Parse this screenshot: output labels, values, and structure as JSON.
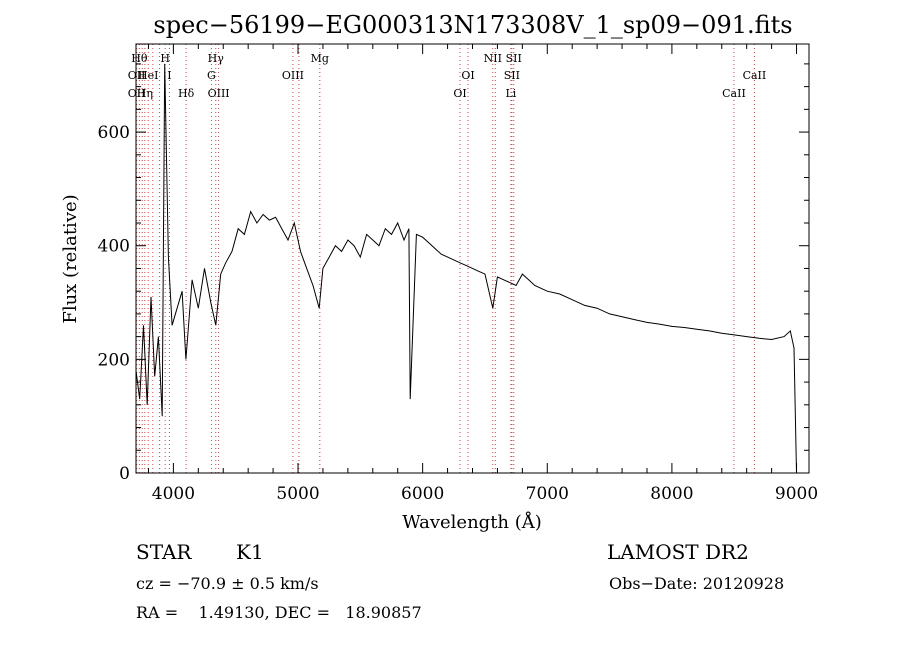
{
  "chart_data": {
    "type": "line",
    "title": "spec−56199−EG000313N173308V_1_sp09−091.fits",
    "xlabel": "Wavelength (Å)",
    "ylabel": "Flux (relative)",
    "xlim": [
      3700,
      9100
    ],
    "ylim": [
      0,
      755
    ],
    "x_ticks": [
      4000,
      5000,
      6000,
      7000,
      8000,
      9000
    ],
    "x_tick_labels": [
      "4000",
      "5000",
      "6000",
      "7000",
      "8000",
      "9000"
    ],
    "y_ticks": [
      0,
      200,
      400,
      600
    ],
    "y_tick_labels": [
      "0",
      "200",
      "400",
      "600"
    ],
    "grid": false,
    "series": [
      {
        "x": [
          3700,
          3730,
          3760,
          3790,
          3820,
          3850,
          3880,
          3910,
          3930,
          3960,
          3990,
          4030,
          4070,
          4100,
          4150,
          4200,
          4250,
          4300,
          4340,
          4380,
          4420,
          4470,
          4520,
          4570,
          4620,
          4670,
          4720,
          4770,
          4820,
          4870,
          4920,
          4970,
          5020,
          5070,
          5120,
          5170,
          5200,
          5250,
          5300,
          5350,
          5400,
          5450,
          5500,
          5550,
          5600,
          5650,
          5700,
          5750,
          5800,
          5850,
          5890,
          5900,
          5950,
          6000,
          6050,
          6100,
          6150,
          6200,
          6250,
          6300,
          6350,
          6400,
          6450,
          6500,
          6563,
          6600,
          6650,
          6700,
          6750,
          6800,
          6850,
          6900,
          6950,
          7000,
          7100,
          7200,
          7300,
          7400,
          7500,
          7600,
          7700,
          7800,
          7900,
          8000,
          8100,
          8200,
          8300,
          8400,
          8500,
          8600,
          8700,
          8800,
          8900,
          8950,
          8980,
          9000
        ],
        "y": [
          180,
          130,
          260,
          120,
          310,
          170,
          240,
          100,
          720,
          380,
          260,
          290,
          320,
          200,
          340,
          290,
          360,
          300,
          260,
          350,
          370,
          390,
          430,
          420,
          460,
          440,
          455,
          445,
          450,
          430,
          410,
          440,
          390,
          360,
          330,
          290,
          360,
          380,
          400,
          390,
          410,
          400,
          380,
          420,
          410,
          400,
          430,
          420,
          440,
          410,
          430,
          130,
          420,
          415,
          405,
          395,
          385,
          380,
          375,
          370,
          365,
          360,
          355,
          350,
          290,
          345,
          340,
          335,
          330,
          350,
          340,
          330,
          325,
          320,
          315,
          305,
          295,
          290,
          280,
          275,
          270,
          265,
          262,
          258,
          256,
          253,
          250,
          246,
          243,
          240,
          237,
          235,
          240,
          250,
          220,
          0
        ]
      }
    ],
    "lines": [
      {
        "x": 3705,
        "labels": [
          "OII",
          "OII"
        ],
        "rows": [
          2,
          3
        ]
      },
      {
        "x": 3727,
        "labels": [
          "Hθ"
        ],
        "rows": [
          1
        ]
      },
      {
        "x": 3750,
        "labels": [],
        "rows": []
      },
      {
        "x": 3771,
        "labels": [
          "Hη"
        ],
        "rows": [
          3
        ]
      },
      {
        "x": 3798,
        "labels": [
          "HeI"
        ],
        "rows": [
          2
        ]
      },
      {
        "x": 3835,
        "labels": [],
        "rows": []
      },
      {
        "x": 3889,
        "labels": [],
        "rows": []
      },
      {
        "x": 3934,
        "labels": [
          "H"
        ],
        "rows": [
          1
        ]
      },
      {
        "x": 3968,
        "labels": [
          "I"
        ],
        "rows": [
          2
        ]
      },
      {
        "x": 4102,
        "labels": [
          "Hδ"
        ],
        "rows": [
          3
        ]
      },
      {
        "x": 4305,
        "labels": [
          "G"
        ],
        "rows": [
          2
        ]
      },
      {
        "x": 4340,
        "labels": [
          "Hγ"
        ],
        "rows": [
          1
        ]
      },
      {
        "x": 4363,
        "labels": [
          "OIII"
        ],
        "rows": [
          3
        ]
      },
      {
        "x": 4959,
        "labels": [
          "OIII"
        ],
        "rows": [
          2
        ]
      },
      {
        "x": 5007,
        "labels": [],
        "rows": []
      },
      {
        "x": 5175,
        "labels": [
          "Mg"
        ],
        "rows": [
          1
        ]
      },
      {
        "x": 6300,
        "labels": [
          "OI"
        ],
        "rows": [
          3
        ]
      },
      {
        "x": 6364,
        "labels": [
          "OI"
        ],
        "rows": [
          2
        ]
      },
      {
        "x": 6563,
        "labels": [
          "NII"
        ],
        "rows": [
          1
        ]
      },
      {
        "x": 6583,
        "labels": [],
        "rows": []
      },
      {
        "x": 6708,
        "labels": [
          "Li"
        ],
        "rows": [
          3
        ]
      },
      {
        "x": 6716,
        "labels": [
          "SII"
        ],
        "rows": [
          2
        ]
      },
      {
        "x": 6731,
        "labels": [
          "SII"
        ],
        "rows": [
          1
        ]
      },
      {
        "x": 8498,
        "labels": [
          "CaII"
        ],
        "rows": [
          3
        ]
      },
      {
        "x": 8662,
        "labels": [
          "CaII"
        ],
        "rows": [
          2
        ]
      }
    ]
  },
  "info": {
    "object_class": "STAR",
    "subclass": "K1",
    "survey": "LAMOST DR2",
    "cz": "cz = −70.9 ± 0.5 km/s",
    "obs_date": "Obs−Date: 20120928",
    "coords": "RA =    1.49130, DEC =   18.90857"
  },
  "colors": {
    "spectrum": "#000000",
    "line_markers": "#d04040",
    "axis": "#000000"
  }
}
